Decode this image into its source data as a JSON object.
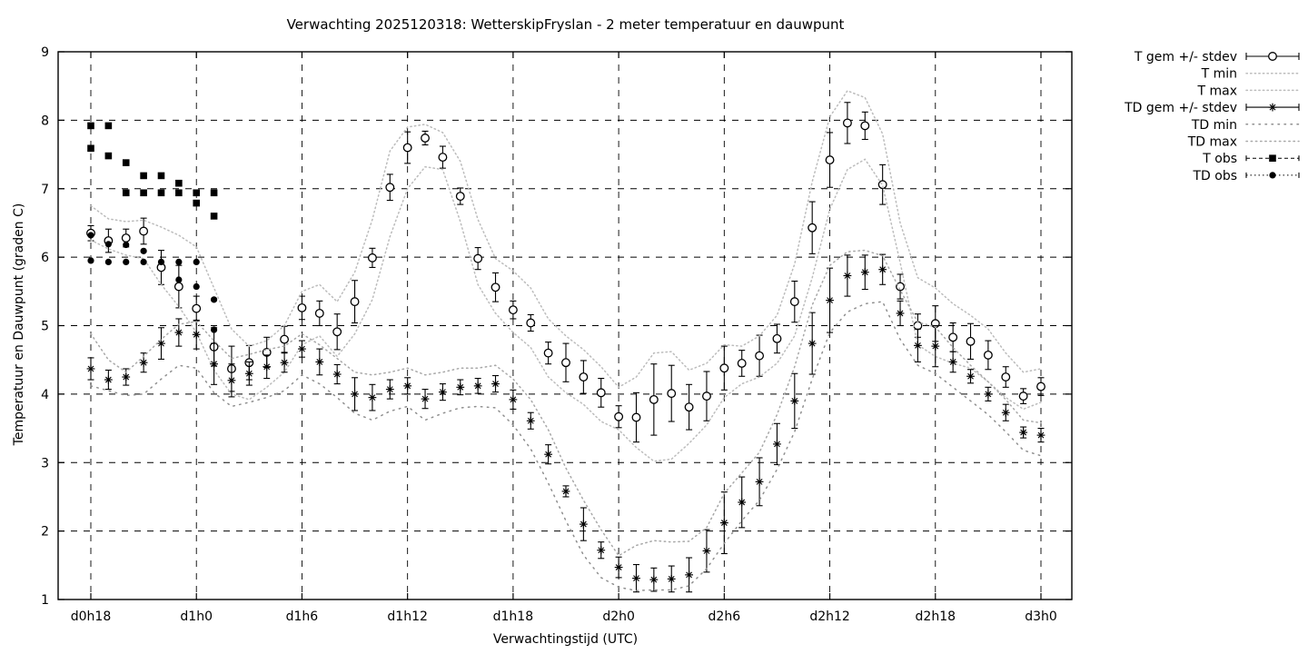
{
  "title": "Verwachting 2025120318: WetterskipFryslan - 2 meter temperatuur en dauwpunt",
  "chart_data": {
    "type": "line",
    "title": "Verwachting 2025120318: WetterskipFryslan - 2 meter temperatuur en dauwpunt",
    "xlabel": "Verwachtingstijd (UTC)",
    "ylabel": "Temperatuur en Dauwpunt (graden C)",
    "ylim": [
      1,
      9
    ],
    "grid": true,
    "legend_position": "right-outside",
    "x_hours_span": 54,
    "x_ticks": [
      {
        "t": 0,
        "label": "d0h18"
      },
      {
        "t": 6,
        "label": "d1h0"
      },
      {
        "t": 12,
        "label": "d1h6"
      },
      {
        "t": 18,
        "label": "d1h12"
      },
      {
        "t": 24,
        "label": "d1h18"
      },
      {
        "t": 30,
        "label": "d2h0"
      },
      {
        "t": 36,
        "label": "d2h6"
      },
      {
        "t": 42,
        "label": "d2h12"
      },
      {
        "t": 48,
        "label": "d2h18"
      },
      {
        "t": 54,
        "label": "d3h0"
      }
    ],
    "y_ticks": [
      1,
      2,
      3,
      4,
      5,
      6,
      7,
      8,
      9
    ],
    "colors": {
      "fg": "#000000",
      "envelope_light": "#bcbcbc",
      "envelope_mid": "#a8a8a8",
      "envelope_dark": "#8f8f8f"
    },
    "series": [
      {
        "name": "T gem +/- stdev",
        "style": "errorbars",
        "marker": "circle",
        "color": "#000000",
        "t0": 0,
        "dt": 1,
        "values": [
          6.35,
          6.24,
          6.28,
          6.38,
          5.85,
          5.57,
          5.25,
          4.69,
          4.37,
          4.46,
          4.61,
          4.8,
          5.26,
          5.18,
          4.91,
          5.35,
          5.99,
          7.02,
          7.6,
          7.74,
          7.46,
          6.89,
          5.98,
          5.56,
          5.23,
          5.04,
          4.6,
          4.46,
          4.25,
          4.02,
          3.67,
          3.66,
          3.92,
          4.01,
          3.81,
          3.97,
          4.38,
          4.45,
          4.56,
          4.81,
          5.35,
          6.43,
          7.42,
          7.96,
          7.92,
          7.06,
          5.57,
          5.0,
          5.03,
          4.83,
          4.77,
          4.57,
          4.25,
          3.97,
          4.11
        ],
        "stdev": [
          0.11,
          0.17,
          0.13,
          0.19,
          0.25,
          0.31,
          0.18,
          0.28,
          0.33,
          0.25,
          0.22,
          0.19,
          0.17,
          0.18,
          0.26,
          0.31,
          0.14,
          0.19,
          0.23,
          0.1,
          0.16,
          0.12,
          0.16,
          0.21,
          0.13,
          0.12,
          0.16,
          0.28,
          0.24,
          0.21,
          0.16,
          0.36,
          0.52,
          0.41,
          0.33,
          0.36,
          0.32,
          0.19,
          0.3,
          0.21,
          0.3,
          0.38,
          0.4,
          0.3,
          0.2,
          0.29,
          0.18,
          0.17,
          0.26,
          0.21,
          0.26,
          0.21,
          0.15,
          0.11,
          0.13
        ]
      },
      {
        "name": "T min",
        "style": "dotted-line",
        "color": "#bcbcbc",
        "dash": "1.4 3.2",
        "t0": 0,
        "dt": 1,
        "values": [
          6.25,
          6.12,
          6.03,
          5.98,
          5.6,
          5.28,
          4.9,
          4.35,
          4.0,
          3.92,
          4.1,
          4.32,
          4.72,
          4.85,
          4.55,
          4.88,
          5.38,
          6.3,
          7.0,
          7.32,
          7.28,
          6.52,
          5.6,
          5.18,
          4.9,
          4.68,
          4.25,
          4.02,
          3.85,
          3.6,
          3.48,
          3.22,
          3.02,
          3.05,
          3.28,
          3.55,
          3.95,
          4.15,
          4.25,
          4.45,
          4.85,
          5.7,
          6.7,
          7.28,
          7.43,
          7.05,
          5.92,
          4.72,
          4.55,
          4.45,
          4.38,
          4.18,
          3.95,
          3.78,
          3.88
        ]
      },
      {
        "name": "T max",
        "style": "dotted-line",
        "color": "#bcbcbc",
        "dash": "1.4 3.2",
        "t0": 0,
        "dt": 1,
        "values": [
          6.75,
          6.56,
          6.52,
          6.54,
          6.44,
          6.32,
          6.15,
          5.55,
          4.95,
          4.7,
          4.78,
          5.0,
          5.5,
          5.6,
          5.35,
          5.78,
          6.55,
          7.55,
          7.9,
          7.94,
          7.82,
          7.4,
          6.55,
          5.98,
          5.8,
          5.55,
          5.1,
          4.85,
          4.65,
          4.4,
          4.1,
          4.25,
          4.6,
          4.62,
          4.35,
          4.45,
          4.72,
          4.7,
          4.85,
          5.15,
          5.9,
          7.1,
          8.05,
          8.43,
          8.33,
          7.8,
          6.5,
          5.7,
          5.55,
          5.32,
          5.15,
          4.95,
          4.6,
          4.32,
          4.37
        ]
      },
      {
        "name": "TD gem +/- stdev",
        "style": "errorbars",
        "marker": "asterisk",
        "color": "#000000",
        "t0": 0,
        "dt": 1,
        "values": [
          4.37,
          4.21,
          4.25,
          4.46,
          4.74,
          4.9,
          4.87,
          4.44,
          4.2,
          4.3,
          4.4,
          4.46,
          4.66,
          4.47,
          4.29,
          4.0,
          3.95,
          4.07,
          4.12,
          3.93,
          4.03,
          4.1,
          4.12,
          4.15,
          3.92,
          3.61,
          3.12,
          2.58,
          2.1,
          1.72,
          1.47,
          1.31,
          1.29,
          1.3,
          1.36,
          1.71,
          2.12,
          2.42,
          2.72,
          3.27,
          3.9,
          4.74,
          5.37,
          5.73,
          5.78,
          5.82,
          5.18,
          4.71,
          4.7,
          4.47,
          4.26,
          4.0,
          3.73,
          3.44,
          3.4
        ],
        "stdev": [
          0.16,
          0.14,
          0.12,
          0.14,
          0.23,
          0.2,
          0.21,
          0.3,
          0.24,
          0.17,
          0.17,
          0.14,
          0.12,
          0.19,
          0.14,
          0.24,
          0.19,
          0.14,
          0.12,
          0.14,
          0.12,
          0.11,
          0.11,
          0.12,
          0.14,
          0.12,
          0.14,
          0.08,
          0.24,
          0.12,
          0.15,
          0.2,
          0.17,
          0.19,
          0.25,
          0.31,
          0.45,
          0.37,
          0.35,
          0.3,
          0.4,
          0.45,
          0.47,
          0.3,
          0.25,
          0.22,
          0.18,
          0.24,
          0.3,
          0.15,
          0.1,
          0.1,
          0.12,
          0.08,
          0.1
        ]
      },
      {
        "name": "TD min",
        "style": "dotted-line",
        "color": "#8f8f8f",
        "dash": "1.5 5.5",
        "t0": 0,
        "dt": 1,
        "values": [
          4.12,
          4.05,
          3.98,
          4.0,
          4.22,
          4.42,
          4.38,
          4.02,
          3.82,
          3.88,
          3.95,
          4.05,
          4.28,
          4.15,
          3.95,
          3.72,
          3.62,
          3.75,
          3.82,
          3.62,
          3.72,
          3.8,
          3.82,
          3.8,
          3.55,
          3.2,
          2.7,
          2.15,
          1.65,
          1.32,
          1.18,
          1.13,
          1.14,
          1.14,
          1.2,
          1.45,
          1.82,
          2.15,
          2.45,
          2.9,
          3.45,
          4.22,
          4.9,
          5.2,
          5.32,
          5.35,
          4.8,
          4.42,
          4.3,
          4.1,
          3.9,
          3.7,
          3.45,
          3.18,
          3.1
        ]
      },
      {
        "name": "TD max",
        "style": "dotted-line",
        "color": "#a8a8a8",
        "dash": "1.4 3.8",
        "t0": 0,
        "dt": 1,
        "values": [
          4.88,
          4.5,
          4.32,
          4.55,
          4.8,
          5.02,
          5.06,
          4.78,
          4.52,
          4.58,
          4.65,
          4.7,
          4.88,
          4.72,
          4.52,
          4.32,
          4.28,
          4.32,
          4.38,
          4.28,
          4.32,
          4.38,
          4.38,
          4.42,
          4.22,
          3.92,
          3.48,
          2.92,
          2.45,
          2.02,
          1.64,
          1.79,
          1.86,
          1.84,
          1.85,
          2.05,
          2.55,
          2.85,
          3.15,
          3.7,
          4.4,
          5.3,
          5.88,
          6.08,
          6.1,
          6.02,
          5.52,
          5.05,
          4.98,
          4.68,
          4.42,
          4.18,
          3.92,
          3.62,
          3.58
        ]
      },
      {
        "name": "T obs",
        "style": "points",
        "marker": "square",
        "color": "#000000",
        "legend_dash": "4 3",
        "points": [
          [
            0,
            7.92
          ],
          [
            0,
            7.59
          ],
          [
            1,
            7.92
          ],
          [
            1,
            7.48
          ],
          [
            2,
            7.38
          ],
          [
            2,
            6.94
          ],
          [
            3,
            7.19
          ],
          [
            3,
            6.94
          ],
          [
            4,
            7.19
          ],
          [
            4,
            6.94
          ],
          [
            5,
            7.08
          ],
          [
            5,
            6.94
          ],
          [
            6,
            6.94
          ],
          [
            6,
            6.79
          ],
          [
            7,
            6.94
          ],
          [
            7,
            6.6
          ]
        ]
      },
      {
        "name": "TD obs",
        "style": "points",
        "marker": "dot",
        "color": "#000000",
        "legend_dash": "1.5 3",
        "points": [
          [
            0,
            6.32
          ],
          [
            0,
            5.95
          ],
          [
            1,
            6.19
          ],
          [
            1,
            5.93
          ],
          [
            2,
            6.18
          ],
          [
            2,
            5.93
          ],
          [
            3,
            6.09
          ],
          [
            3,
            5.93
          ],
          [
            4,
            5.93
          ],
          [
            5,
            5.93
          ],
          [
            5,
            5.67
          ],
          [
            6,
            5.93
          ],
          [
            6,
            5.57
          ],
          [
            7,
            5.38
          ],
          [
            7,
            4.94
          ]
        ]
      }
    ]
  }
}
